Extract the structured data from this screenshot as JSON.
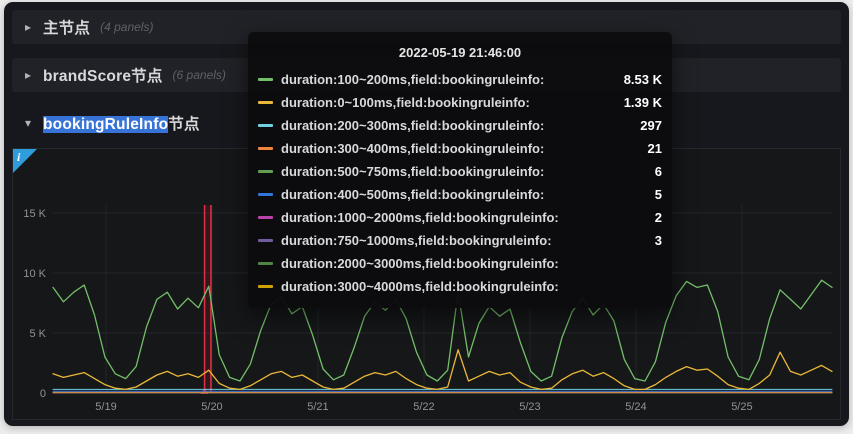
{
  "colors": {
    "selection": "#3874d8",
    "info_corner": "#2f9ddb",
    "annotation": "#e02f44",
    "row_title": "#d8d9da"
  },
  "rows": [
    {
      "title": "主节点",
      "panels": "(4 panels)",
      "state": "collapsed",
      "chevron": "▸"
    },
    {
      "title": "brandScore节点",
      "panels": "(6 panels)",
      "state": "collapsed",
      "chevron": "▸"
    },
    {
      "title_highlight": "bookingRuleInfo",
      "title_rest": "节点",
      "state": "expanded",
      "chevron": "▾"
    }
  ],
  "graph_panel": {
    "info_icon": "i"
  },
  "tooltip": {
    "timestamp": "2022-05-19 21:46:00",
    "series": [
      {
        "label": "duration:100~200ms,field:bookingruleinfo:",
        "value": "8.53 K",
        "color": "#73BF69"
      },
      {
        "label": "duration:0~100ms,field:bookingruleinfo:",
        "value": "1.39 K",
        "color": "#EAB839"
      },
      {
        "label": "duration:200~300ms,field:bookingruleinfo:",
        "value": "297",
        "color": "#6ED0E0"
      },
      {
        "label": "duration:300~400ms,field:bookingruleinfo:",
        "value": "21",
        "color": "#EF843C"
      },
      {
        "label": "duration:500~750ms,field:bookingruleinfo:",
        "value": "6",
        "color": "#629E51"
      },
      {
        "label": "duration:400~500ms,field:bookingruleinfo:",
        "value": "5",
        "color": "#3274D9"
      },
      {
        "label": "duration:1000~2000ms,field:bookingruleinfo:",
        "value": "2",
        "color": "#BA43A9"
      },
      {
        "label": "duration:750~1000ms,field:bookingruleinfo:",
        "value": "3",
        "color": "#705DA0"
      },
      {
        "label": "duration:2000~3000ms,field:bookingruleinfo:",
        "value": "",
        "color": "#508642"
      },
      {
        "label": "duration:3000~4000ms,field:bookingruleinfo:",
        "value": "",
        "color": "#CCA300"
      }
    ]
  },
  "chart_data": {
    "type": "line",
    "title": "",
    "x_unit": "day of May 2022",
    "x_min": 18.5,
    "x_max": 25.85,
    "x_ticks": [
      {
        "v": 19,
        "label": "5/19"
      },
      {
        "v": 20,
        "label": "5/20"
      },
      {
        "v": 21,
        "label": "5/21"
      },
      {
        "v": 22,
        "label": "5/22"
      },
      {
        "v": 23,
        "label": "5/23"
      },
      {
        "v": 24,
        "label": "5/24"
      },
      {
        "v": 25,
        "label": "5/25"
      }
    ],
    "y_unit": "count (thousands)",
    "ylim": [
      0,
      16
    ],
    "y_ticks": [
      {
        "v": 0,
        "label": "0"
      },
      {
        "v": 5,
        "label": "5 K"
      },
      {
        "v": 10,
        "label": "10 K"
      },
      {
        "v": 15,
        "label": "15 K"
      }
    ],
    "grid": true,
    "legend_position": "tooltip-only",
    "annotations": [
      {
        "x": 19.93,
        "color": "#e02f44"
      },
      {
        "x": 19.99,
        "color": "#e02f44"
      }
    ],
    "series": [
      {
        "name": "duration:2000~3000ms",
        "color": "#508642",
        "constant_k": 0.01
      },
      {
        "name": "duration:3000~4000ms",
        "color": "#CCA300",
        "constant_k": 0.01
      },
      {
        "name": "duration:1000~2000ms",
        "color": "#BA43A9",
        "constant_k": 0.02
      },
      {
        "name": "duration:750~1000ms",
        "color": "#705DA0",
        "constant_k": 0.02
      },
      {
        "name": "duration:500~750ms",
        "color": "#629E51",
        "constant_k": 0.03
      },
      {
        "name": "duration:300~400ms",
        "color": "#EF843C",
        "constant_k": 0.06
      },
      {
        "name": "duration:400~500ms",
        "color": "#3274D9",
        "constant_k": 0.15
      },
      {
        "name": "duration:200~300ms",
        "color": "#6ED0E0",
        "constant_k": 0.3
      },
      {
        "name": "duration:0~100ms",
        "color": "#EAB839",
        "values_k": [
          1.6,
          1.3,
          1.5,
          1.7,
          1.2,
          0.7,
          0.4,
          0.3,
          0.5,
          1.0,
          1.5,
          1.8,
          1.4,
          1.6,
          1.3,
          1.9,
          0.8,
          0.4,
          0.3,
          0.6,
          1.1,
          1.6,
          1.8,
          1.3,
          1.5,
          1.0,
          0.5,
          0.3,
          0.4,
          0.9,
          1.4,
          1.7,
          1.5,
          1.8,
          1.2,
          0.7,
          0.4,
          0.3,
          0.5,
          3.6,
          1.0,
          1.4,
          1.8,
          1.5,
          1.7,
          0.9,
          0.5,
          0.3,
          0.4,
          1.1,
          1.6,
          1.9,
          1.4,
          1.7,
          1.2,
          0.6,
          0.3,
          0.3,
          0.7,
          1.3,
          1.8,
          2.2,
          1.9,
          2.0,
          1.4,
          0.7,
          0.4,
          0.3,
          0.8,
          1.5,
          3.4,
          1.8,
          1.5,
          1.9,
          2.3,
          1.8
        ]
      },
      {
        "name": "duration:100~200ms",
        "color": "#73BF69",
        "values_k": [
          8.8,
          7.6,
          8.4,
          9.0,
          6.5,
          3.0,
          1.6,
          1.2,
          2.2,
          5.5,
          7.8,
          8.4,
          7.0,
          7.9,
          7.1,
          8.9,
          3.2,
          1.3,
          1.0,
          2.4,
          5.2,
          7.4,
          8.0,
          6.6,
          7.2,
          4.8,
          2.0,
          1.1,
          1.5,
          3.8,
          6.4,
          7.6,
          6.9,
          7.8,
          6.2,
          3.4,
          1.5,
          1.0,
          1.9,
          8.4,
          3.0,
          5.8,
          7.2,
          6.4,
          7.0,
          4.2,
          1.8,
          1.0,
          1.4,
          4.6,
          6.8,
          7.9,
          6.5,
          7.4,
          6.0,
          2.8,
          1.2,
          1.0,
          2.6,
          5.9,
          8.1,
          9.3,
          8.8,
          9.0,
          6.8,
          3.0,
          1.4,
          1.1,
          2.8,
          6.2,
          8.6,
          7.8,
          7.0,
          8.2,
          9.4,
          8.8
        ]
      }
    ]
  }
}
